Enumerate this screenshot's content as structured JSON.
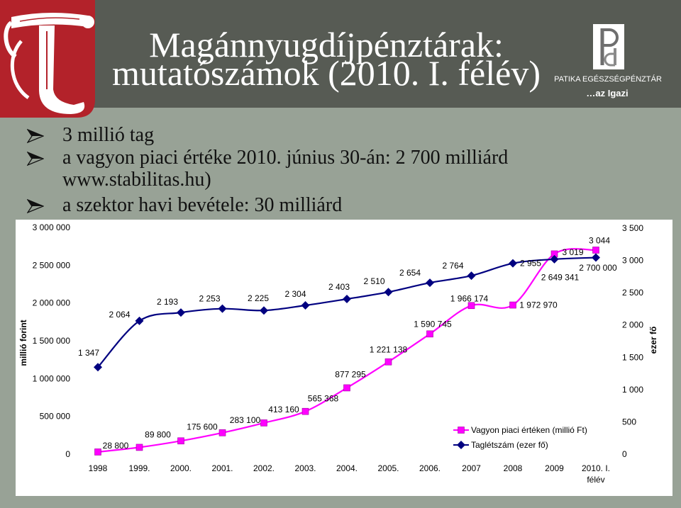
{
  "logo": {
    "icon": "ornate-t-logo-icon"
  },
  "title": {
    "line1": "Magánnyugdíjpénztárak:",
    "line2": "mutatószámok (2010. I. félév)"
  },
  "brand": {
    "icon": "patika-p-logo-icon",
    "name": "PATIKA EGÉSZSÉGPÉNZTÁR",
    "tagline": "…az Igazi"
  },
  "bullet_icon": "arrow-bullet-icon",
  "bullets": [
    {
      "text": "3 millió tag"
    },
    {
      "text": "a vagyon piaci értéke 2010. június 30-án: 2 700 milliárd",
      "continuation": "www.stabilitas.hu)"
    },
    {
      "text": "a szektor havi bevétele: 30 milliárd"
    }
  ],
  "chart_data": {
    "type": "line",
    "categories": [
      "1998",
      "1999.",
      "2000.",
      "2001.",
      "2002.",
      "2003.",
      "2004.",
      "2005.",
      "2006.",
      "2007",
      "2008",
      "2009",
      "2010. I. félév"
    ],
    "series": [
      {
        "name": "Vagyon piaci értéken (millió Ft)",
        "axis": "left",
        "color": "#ff00ff",
        "marker": "square",
        "values": [
          28800,
          89800,
          175600,
          283100,
          413160,
          565368,
          877295,
          1221138,
          1590745,
          1966174,
          1972970,
          2649341,
          2700000
        ],
        "labels": [
          "28 800",
          "89 800",
          "175 600",
          "283 100",
          "413 160",
          "565 368",
          "877 295",
          "1 221 138",
          "1 590 745",
          "1 966 174",
          "1 972 970",
          "2 649 341",
          "2 700 000"
        ]
      },
      {
        "name": "Taglétszám (ezer fő)",
        "axis": "right",
        "color": "#000080",
        "marker": "diamond",
        "values": [
          1347,
          2064,
          2193,
          2253,
          2225,
          2304,
          2403,
          2510,
          2654,
          2764,
          2955,
          3019,
          3044
        ],
        "labels": [
          "1 347",
          "2 064",
          "2 193",
          "2 253",
          "2 225",
          "2 304",
          "2 403",
          "2 510",
          "2 654",
          "2 764",
          "2 955",
          "3 019",
          "3 044"
        ]
      }
    ],
    "y_left": {
      "label": "millió forint",
      "ylim": [
        0,
        3000000
      ],
      "tick_labels": [
        "0",
        "500 000",
        "1 000 000",
        "1 500 000",
        "2 000 000",
        "2 500 000",
        "3 000 000"
      ]
    },
    "y_right": {
      "label": "ezer fő",
      "ylim": [
        0,
        3500
      ],
      "tick_labels": [
        "0",
        "500",
        "1 000",
        "1 500",
        "2 000",
        "2 500",
        "3 000",
        "3 500"
      ]
    },
    "grid": false,
    "legend": "bottom-right",
    "smoothed": true
  }
}
